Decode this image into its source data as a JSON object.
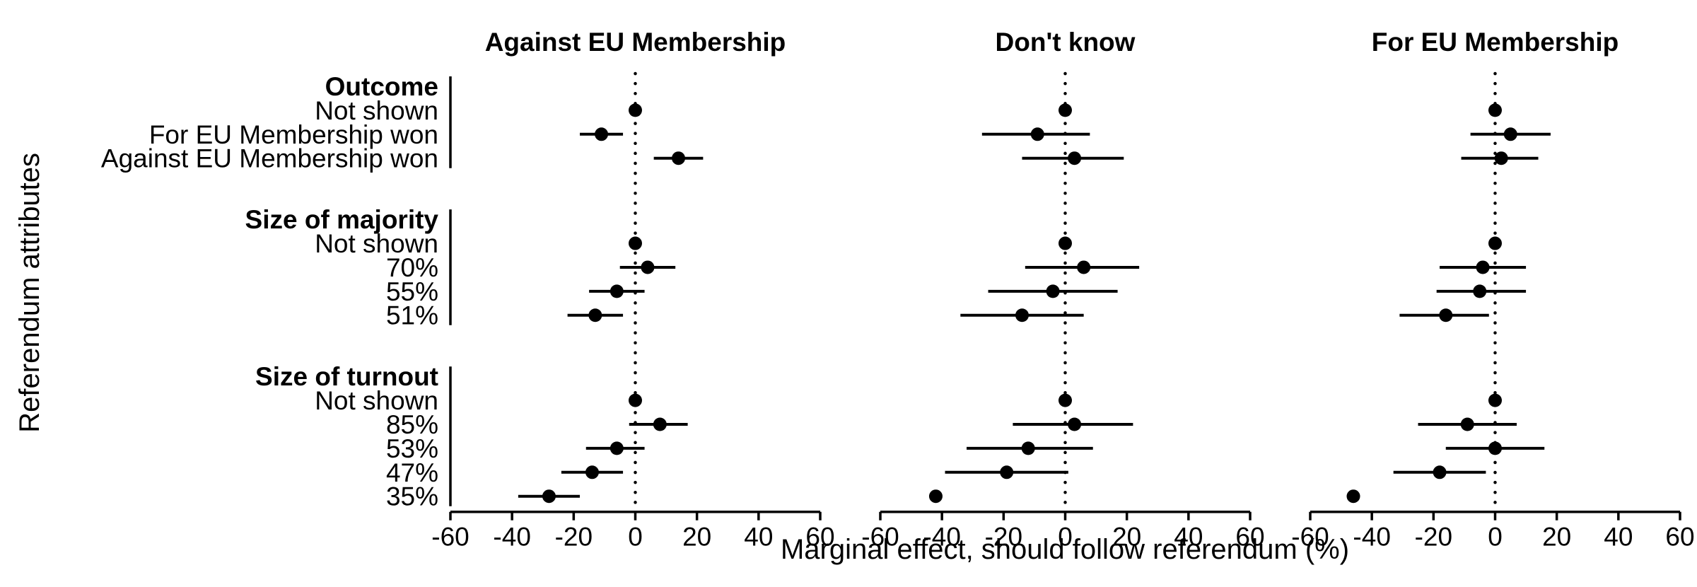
{
  "chart_data": {
    "type": "forest",
    "xlabel": "Marginal effect, should follow referendum (%)",
    "ylabel": "Referendum attributes",
    "xlim": [
      -60,
      60
    ],
    "xticks": [
      -60,
      -40,
      -20,
      0,
      20,
      40,
      60
    ],
    "xtick_labels": [
      "-60",
      "-40",
      "-20",
      "0",
      "20",
      "40",
      "60"
    ],
    "reference_line": 0,
    "groups": [
      {
        "label": "Outcome",
        "levels": [
          "Not shown",
          "For EU Membership won",
          "Against EU Membership won"
        ]
      },
      {
        "label": "Size of majority",
        "levels": [
          "Not shown",
          "70%",
          "55%",
          "51%"
        ]
      },
      {
        "label": "Size of turnout",
        "levels": [
          "Not shown",
          "85%",
          "53%",
          "47%",
          "35%"
        ]
      }
    ],
    "panels": [
      {
        "title": "Against EU Membership",
        "estimates": [
          [
            [
              0,
              null,
              null
            ],
            [
              -11,
              -18,
              -4
            ],
            [
              14,
              6,
              22
            ]
          ],
          [
            [
              0,
              null,
              null
            ],
            [
              4,
              -5,
              13
            ],
            [
              -6,
              -15,
              3
            ],
            [
              -13,
              -22,
              -4
            ]
          ],
          [
            [
              0,
              null,
              null
            ],
            [
              8,
              -2,
              17
            ],
            [
              -6,
              -16,
              3
            ],
            [
              -14,
              -24,
              -4
            ],
            [
              -28,
              -38,
              -18
            ]
          ]
        ]
      },
      {
        "title": "Don't know",
        "estimates": [
          [
            [
              0,
              null,
              null
            ],
            [
              -9,
              -27,
              8
            ],
            [
              3,
              -14,
              19
            ]
          ],
          [
            [
              0,
              null,
              null
            ],
            [
              6,
              -13,
              24
            ],
            [
              -4,
              -25,
              17
            ],
            [
              -14,
              -34,
              6
            ]
          ],
          [
            [
              0,
              null,
              null
            ],
            [
              3,
              -17,
              22
            ],
            [
              -12,
              -32,
              9
            ],
            [
              -19,
              -39,
              1
            ],
            [
              -42,
              null,
              null
            ]
          ]
        ]
      },
      {
        "title": "For EU Membership",
        "estimates": [
          [
            [
              0,
              null,
              null
            ],
            [
              5,
              -8,
              18
            ],
            [
              2,
              -11,
              14
            ]
          ],
          [
            [
              0,
              null,
              null
            ],
            [
              -4,
              -18,
              10
            ],
            [
              -5,
              -19,
              10
            ],
            [
              -16,
              -31,
              -2
            ]
          ],
          [
            [
              0,
              null,
              null
            ],
            [
              -9,
              -25,
              7
            ],
            [
              0,
              -16,
              16
            ],
            [
              -18,
              -33,
              -3
            ],
            [
              -46,
              null,
              null
            ]
          ]
        ]
      }
    ]
  }
}
